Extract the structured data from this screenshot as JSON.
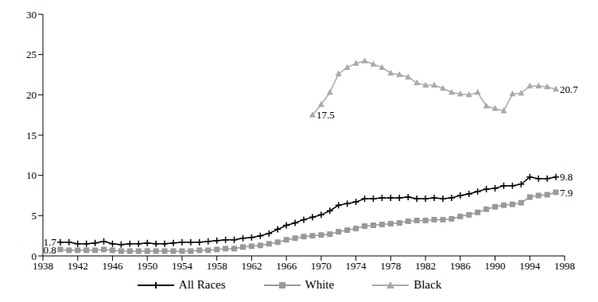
{
  "chart_data": {
    "type": "line",
    "x": [
      1940,
      1941,
      1942,
      1943,
      1944,
      1945,
      1946,
      1947,
      1948,
      1949,
      1950,
      1951,
      1952,
      1953,
      1954,
      1955,
      1956,
      1957,
      1958,
      1959,
      1960,
      1961,
      1962,
      1963,
      1964,
      1965,
      1966,
      1967,
      1968,
      1969,
      1970,
      1971,
      1972,
      1973,
      1974,
      1975,
      1976,
      1977,
      1978,
      1979,
      1980,
      1981,
      1982,
      1983,
      1984,
      1985,
      1986,
      1987,
      1988,
      1989,
      1990,
      1991,
      1992,
      1993,
      1994,
      1995,
      1996,
      1997
    ],
    "series": [
      {
        "name": "All Races",
        "color": "#000000",
        "marker": "plus",
        "values": [
          1.7,
          1.7,
          1.5,
          1.5,
          1.6,
          1.8,
          1.5,
          1.4,
          1.5,
          1.5,
          1.6,
          1.5,
          1.5,
          1.6,
          1.7,
          1.7,
          1.7,
          1.8,
          1.9,
          2.0,
          2.0,
          2.2,
          2.3,
          2.5,
          2.8,
          3.3,
          3.8,
          4.1,
          4.5,
          4.8,
          5.1,
          5.6,
          6.3,
          6.5,
          6.7,
          7.1,
          7.1,
          7.2,
          7.2,
          7.2,
          7.3,
          7.1,
          7.1,
          7.2,
          7.1,
          7.2,
          7.5,
          7.7,
          8.0,
          8.3,
          8.4,
          8.7,
          8.7,
          8.9,
          9.8,
          9.6,
          9.6,
          9.8
        ]
      },
      {
        "name": "White",
        "color": "#999999",
        "marker": "square",
        "values": [
          0.8,
          0.7,
          0.7,
          0.7,
          0.7,
          0.8,
          0.7,
          0.6,
          0.6,
          0.6,
          0.6,
          0.6,
          0.6,
          0.6,
          0.6,
          0.6,
          0.7,
          0.7,
          0.8,
          0.9,
          0.9,
          1.1,
          1.2,
          1.3,
          1.5,
          1.7,
          2.0,
          2.2,
          2.4,
          2.5,
          2.6,
          2.7,
          3.0,
          3.2,
          3.4,
          3.7,
          3.8,
          3.9,
          4.0,
          4.1,
          4.3,
          4.4,
          4.4,
          4.5,
          4.5,
          4.6,
          4.9,
          5.1,
          5.4,
          5.8,
          6.1,
          6.3,
          6.4,
          6.6,
          7.3,
          7.5,
          7.6,
          7.9
        ]
      },
      {
        "name": "Black",
        "color": "#aaaaaa",
        "marker": "triangle",
        "values": [
          null,
          null,
          null,
          null,
          null,
          null,
          null,
          null,
          null,
          null,
          null,
          null,
          null,
          null,
          null,
          null,
          null,
          null,
          null,
          null,
          null,
          null,
          null,
          null,
          null,
          null,
          null,
          null,
          null,
          17.5,
          18.8,
          20.3,
          22.6,
          23.4,
          23.9,
          24.2,
          23.8,
          23.4,
          22.7,
          22.5,
          22.2,
          21.5,
          21.2,
          21.2,
          20.8,
          20.3,
          20.1,
          20.0,
          20.3,
          18.6,
          18.3,
          18.0,
          20.1,
          20.2,
          21.1,
          21.1,
          21.0,
          20.7
        ]
      }
    ],
    "annotations": [
      {
        "text": "1.7",
        "x": 1940,
        "y": 1.7
      },
      {
        "text": "0.8",
        "x": 1940,
        "y": 0.8
      },
      {
        "text": "17.5",
        "x": 1969,
        "y": 17.5
      },
      {
        "text": "20.7",
        "x": 1997,
        "y": 20.7
      },
      {
        "text": "9.8",
        "x": 1997,
        "y": 9.8
      },
      {
        "text": "7.9",
        "x": 1997,
        "y": 7.9
      }
    ],
    "xlim": [
      1938,
      1998
    ],
    "xticks": [
      1938,
      1942,
      1946,
      1950,
      1954,
      1958,
      1962,
      1966,
      1970,
      1974,
      1978,
      1982,
      1986,
      1990,
      1994,
      1998
    ],
    "ylim": [
      0,
      30
    ],
    "yticks": [
      0,
      5,
      10,
      15,
      20,
      25,
      30
    ],
    "grid": false,
    "legend": "bottom"
  }
}
